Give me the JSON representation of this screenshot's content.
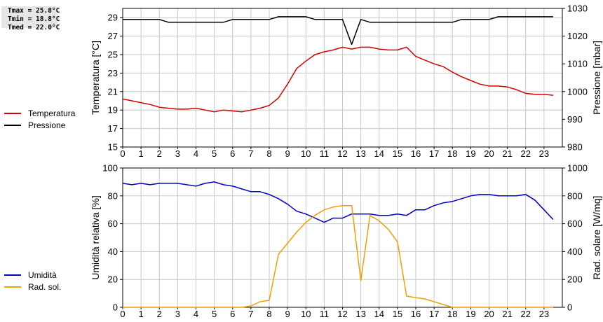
{
  "stats": [
    {
      "label": "Tmax = 25.8°C"
    },
    {
      "label": "Tmin = 18.8°C"
    },
    {
      "label": "Tmed = 22.0°C"
    }
  ],
  "colors": {
    "temperatura": "#d40000",
    "pressione": "#000000",
    "umidita": "#0000c0",
    "rad": "#f0a000"
  },
  "chart_data": [
    {
      "type": "line",
      "x_ticks": [
        "0",
        "1",
        "2",
        "3",
        "4",
        "5",
        "6",
        "7",
        "8",
        "9",
        "10",
        "11",
        "12",
        "13",
        "14",
        "15",
        "16",
        "17",
        "18",
        "19",
        "20",
        "21",
        "22",
        "23"
      ],
      "xlim": [
        0,
        24
      ],
      "ylabel_left": "Temperatura [°C]",
      "ylabel_right": "Pressione [mbar]",
      "yticks_left": [
        "15",
        "17",
        "19",
        "21",
        "23",
        "25",
        "27",
        "29"
      ],
      "yticks_right": [
        "980",
        "990",
        "1000",
        "1010",
        "1020",
        "1030"
      ],
      "ylim_left": [
        15,
        30
      ],
      "ylim_right": [
        980,
        1030
      ],
      "grid": true,
      "legend_placement": "left",
      "series": [
        {
          "name": "Temperatura",
          "axis": "left",
          "x": [
            0,
            0.5,
            1,
            1.5,
            2,
            2.5,
            3,
            3.5,
            4,
            4.5,
            5,
            5.5,
            6,
            6.5,
            7,
            7.5,
            8,
            8.5,
            9,
            9.5,
            10,
            10.5,
            11,
            11.5,
            12,
            12.5,
            13,
            13.5,
            14,
            14.5,
            15,
            15.5,
            16,
            16.5,
            17,
            17.5,
            18,
            18.5,
            19,
            19.5,
            20,
            20.5,
            21,
            21.5,
            22,
            22.5,
            23,
            23.5
          ],
          "y": [
            20.2,
            20.0,
            19.8,
            19.6,
            19.3,
            19.2,
            19.1,
            19.1,
            19.2,
            19.0,
            18.8,
            19.0,
            18.9,
            18.8,
            19.0,
            19.2,
            19.5,
            20.3,
            21.8,
            23.5,
            24.3,
            25.0,
            25.3,
            25.5,
            25.8,
            25.6,
            25.8,
            25.8,
            25.6,
            25.5,
            25.5,
            25.8,
            24.8,
            24.4,
            24.0,
            23.7,
            23.1,
            22.6,
            22.2,
            21.8,
            21.6,
            21.6,
            21.5,
            21.2,
            20.8,
            20.7,
            20.7,
            20.6
          ]
        },
        {
          "name": "Pressione",
          "axis": "right",
          "x": [
            0,
            1,
            2,
            2.5,
            3,
            4,
            5,
            5.5,
            6,
            7,
            8,
            8.5,
            9,
            10,
            10.5,
            11,
            11.5,
            12,
            12.5,
            13,
            13.5,
            14,
            15,
            16,
            17,
            18,
            18.5,
            19,
            20,
            20.5,
            21,
            22,
            23,
            23.5
          ],
          "y": [
            1026,
            1026,
            1026,
            1025,
            1025,
            1025,
            1025,
            1025,
            1026,
            1026,
            1026,
            1027,
            1027,
            1027,
            1026,
            1026,
            1026,
            1026,
            1017,
            1026,
            1025,
            1025,
            1025,
            1025,
            1025,
            1025,
            1026,
            1026,
            1026,
            1027,
            1027,
            1027,
            1027,
            1027
          ]
        }
      ]
    },
    {
      "type": "line",
      "x_ticks": [
        "0",
        "1",
        "2",
        "3",
        "4",
        "5",
        "6",
        "7",
        "8",
        "9",
        "10",
        "11",
        "12",
        "13",
        "14",
        "15",
        "16",
        "17",
        "18",
        "19",
        "20",
        "21",
        "22",
        "23"
      ],
      "xlim": [
        0,
        24
      ],
      "ylabel_left": "Umidità relativa [%]",
      "ylabel_right": "Rad. solare [W/mq]",
      "yticks_left": [
        "0",
        "20",
        "40",
        "60",
        "80",
        "100"
      ],
      "yticks_right": [
        "0",
        "200",
        "400",
        "600",
        "800",
        "1000"
      ],
      "ylim_left": [
        0,
        100
      ],
      "ylim_right": [
        0,
        1000
      ],
      "grid": true,
      "legend_placement": "left",
      "series": [
        {
          "name": "Umidità",
          "axis": "left",
          "x": [
            0,
            0.5,
            1,
            1.5,
            2,
            2.5,
            3,
            3.5,
            4,
            4.5,
            5,
            5.5,
            6,
            6.5,
            7,
            7.5,
            8,
            8.5,
            9,
            9.5,
            10,
            10.5,
            11,
            11.5,
            12,
            12.5,
            13,
            13.5,
            14,
            14.5,
            15,
            15.5,
            16,
            16.5,
            17,
            17.5,
            18,
            18.5,
            19,
            19.5,
            20,
            20.5,
            21,
            21.5,
            22,
            22.5,
            23,
            23.5
          ],
          "y": [
            89,
            88,
            89,
            88,
            89,
            89,
            89,
            88,
            87,
            89,
            90,
            88,
            87,
            85,
            83,
            83,
            81,
            78,
            74,
            69,
            67,
            64,
            61,
            64,
            64,
            67,
            67,
            67,
            66,
            66,
            67,
            66,
            70,
            70,
            73,
            75,
            76,
            78,
            80,
            81,
            81,
            80,
            80,
            80,
            81,
            77,
            70,
            63
          ]
        },
        {
          "name": "Rad. sol.",
          "axis": "right",
          "x": [
            0,
            1,
            2,
            3,
            4,
            5,
            6,
            6.5,
            7,
            7.5,
            8,
            8.5,
            9,
            9.5,
            10,
            10.5,
            11,
            11.5,
            12,
            12.5,
            13,
            13.5,
            14,
            14.5,
            15,
            15.5,
            16,
            16.5,
            17,
            17.5,
            18,
            19,
            20,
            21,
            22,
            23,
            23.5
          ],
          "y": [
            0,
            0,
            0,
            0,
            0,
            0,
            0,
            0,
            10,
            40,
            50,
            380,
            460,
            540,
            610,
            660,
            700,
            720,
            730,
            730,
            190,
            660,
            620,
            560,
            470,
            80,
            70,
            60,
            40,
            20,
            0,
            0,
            0,
            0,
            0,
            0,
            0
          ]
        }
      ]
    }
  ]
}
